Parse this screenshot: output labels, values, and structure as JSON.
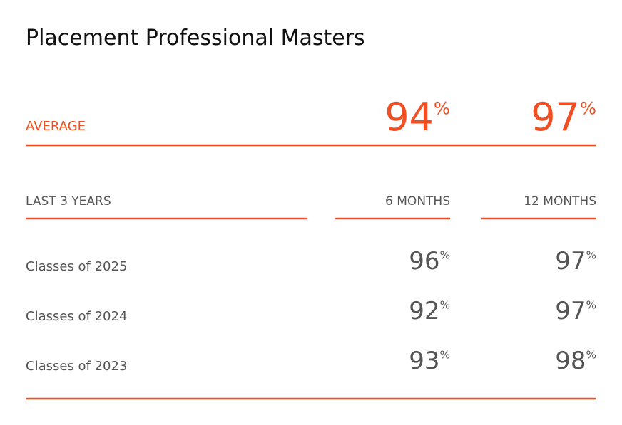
{
  "title": "Placement Professional Masters",
  "unit": "%",
  "average": {
    "label": "AVERAGE",
    "values": [
      94,
      97
    ]
  },
  "header": {
    "label": "LAST 3 YEARS",
    "columns": [
      "6 MONTHS",
      "12 MONTHS"
    ]
  },
  "rows": [
    {
      "label": "Classes of 2025",
      "values": [
        96,
        97
      ]
    },
    {
      "label": "Classes of 2024",
      "values": [
        92,
        97
      ]
    },
    {
      "label": "Classes of 2023",
      "values": [
        93,
        98
      ]
    }
  ]
}
